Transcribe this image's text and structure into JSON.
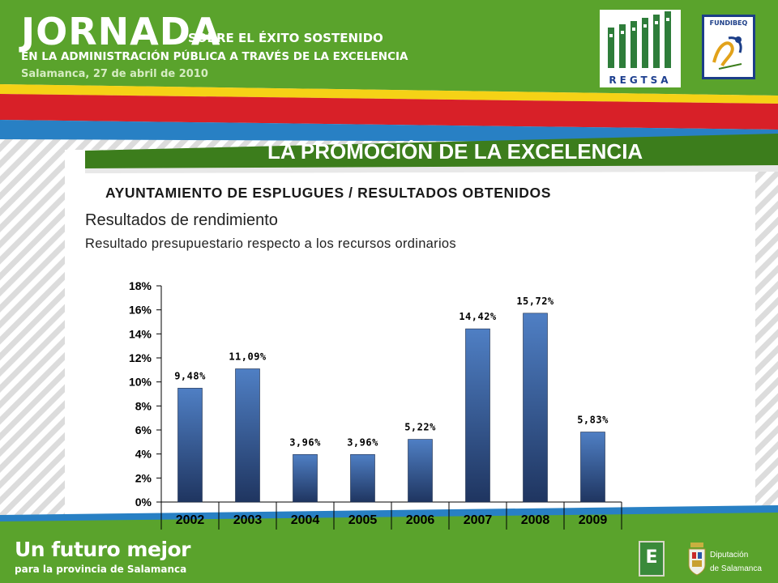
{
  "header": {
    "title": "JORNADA",
    "subtitle_line1": "SOBRE EL ÉXITO SOSTENIDO",
    "subtitle_line2": "EN LA ADMINISTRACIÓN PÚBLICA A TRAVÉS DE LA EXCELENCIA",
    "date": "Salamanca, 27 de abril de 2010",
    "logos": {
      "regtsa": "REGTSA",
      "fundibeq": "FUNDIBEQ"
    }
  },
  "main": {
    "section_title": "LA PROMOCIÓN DE LA EXCELENCIA",
    "subtitle": "AYUNTAMIENTO DE ESPLUGUES / RESULTADOS OBTENIDOS",
    "heading": "Resultados de rendimiento",
    "description": "Resultado presupuestario respecto a los recursos ordinarios"
  },
  "chart_data": {
    "type": "bar",
    "categories": [
      "2002",
      "2003",
      "2004",
      "2005",
      "2006",
      "2007",
      "2008",
      "2009"
    ],
    "values": [
      9.48,
      11.09,
      3.96,
      3.96,
      5.22,
      14.42,
      15.72,
      5.83
    ],
    "data_labels": [
      "9,48%",
      "11,09%",
      "3,96%",
      "3,96%",
      "5,22%",
      "14,42%",
      "15,72%",
      "5,83%"
    ],
    "y_ticks": [
      0,
      2,
      4,
      6,
      8,
      10,
      12,
      14,
      16,
      18
    ],
    "y_tick_labels": [
      "0%",
      "2%",
      "4%",
      "6%",
      "8%",
      "10%",
      "12%",
      "14%",
      "16%",
      "18%"
    ],
    "ylim": [
      0,
      18
    ],
    "grid": false,
    "title": "",
    "xlabel": "",
    "ylabel": "",
    "bar_color_top": "#4f7fc4",
    "bar_color_bottom": "#1f3560"
  },
  "footer": {
    "slogan_line1": "Un futuro mejor",
    "slogan_line2": "para la provincia de Salamanca",
    "badge": "E",
    "institution_line1": "Diputación",
    "institution_line2": "de Salamanca"
  },
  "colors": {
    "green": "#5aa32c",
    "dark_green": "#3c7d1c",
    "red": "#d82028",
    "yellow": "#f5d216",
    "blue": "#2880c4",
    "stripe": "#dcdcdc"
  },
  "icons": [
    "regtsa-logo",
    "fundibeq-logo",
    "e-badge-icon",
    "salamanca-shield-icon"
  ]
}
